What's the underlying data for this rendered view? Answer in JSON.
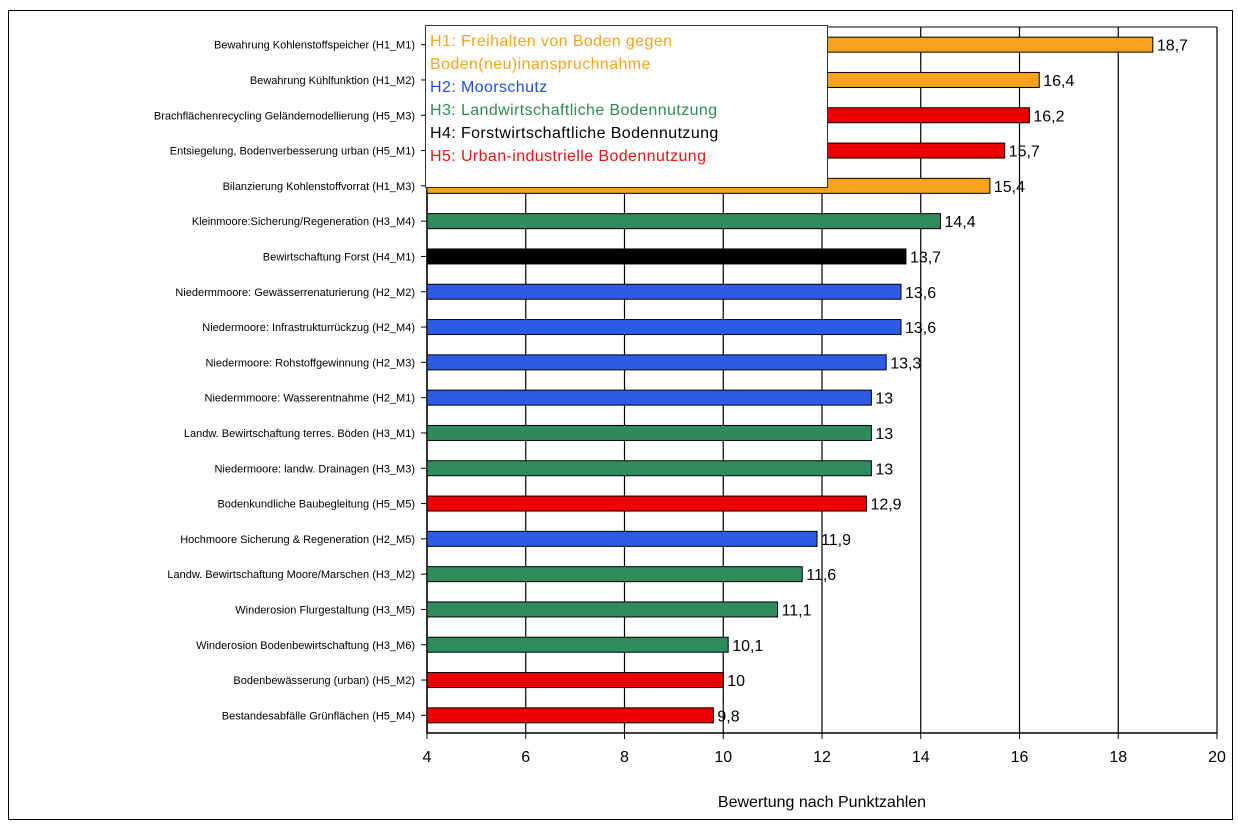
{
  "chart_data": {
    "type": "bar",
    "orientation": "horizontal",
    "xlabel": "Bewertung nach Punktzahlen",
    "ylabel": "",
    "xlim": [
      4,
      20
    ],
    "xticks": [
      4,
      6,
      8,
      10,
      12,
      14,
      16,
      18,
      20
    ],
    "grid": "vertical",
    "legend_position": "top-left",
    "legend": [
      {
        "label": "H1: Freihalten von Boden gegen Boden(neu)inanspruchnahme",
        "color": "#f7a21b"
      },
      {
        "label": "H2: Moorschutz",
        "color": "#2050e0"
      },
      {
        "label": "H3: Landwirtschaftliche Bodennutzung",
        "color": "#2e8b57"
      },
      {
        "label": "H4: Forstwirtschaftliche Bodennutzung",
        "color": "#000000"
      },
      {
        "label": "H5: Urban-industrielle Bodennutzung",
        "color": "#ee1111"
      }
    ],
    "groups": {
      "H1": {
        "color": "#f7a21b"
      },
      "H2": {
        "color": "#2e5be6"
      },
      "H3": {
        "color": "#2e8b5e"
      },
      "H4": {
        "color": "#000000"
      },
      "H5": {
        "color": "#ef0000"
      }
    },
    "categories": [
      "Bewahrung Kohlenstoffspeicher (H1_M1)",
      "Bewahrung Kühlfunktion (H1_M2)",
      "Brachflächenrecycling Geländemodellierung (H5_M3)",
      "Entsiegelung, Bodenverbesserung urban (H5_M1)",
      "Bilanzierung Kohlenstoffvorrat (H1_M3)",
      "Kleinmoore:Sicherung/Regeneration (H3_M4)",
      "Bewirtschaftung Forst (H4_M1)",
      "Niedermmoore: Gewässerrenaturierung (H2_M2)",
      "Niedermoore: Infrastrukturrückzug (H2_M4)",
      "Niedermoore: Rohstoffgewinnung (H2_M3)",
      "Niedermmoore: Wasserentnahme (H2_M1)",
      "Landw. Bewirtschaftung terres. Böden (H3_M1)",
      "Niedermoore: landw. Drainagen (H3_M3)",
      "Bodenkundliche Baubegleitung (H5_M5)",
      "Hochmoore Sicherung & Regeneration (H2_M5)",
      "Landw. Bewirtschaftung Moore/Marschen (H3_M2)",
      "Winderosion Flurgestaltung (H3_M5)",
      "Winderosion Bodenbewirtschaftung (H3_M6)",
      "Bodenbewässerung (urban) (H5_M2)",
      "Bestandesabfälle Grünflächen (H5_M4)"
    ],
    "values": [
      18.7,
      16.4,
      16.2,
      15.7,
      15.4,
      14.4,
      13.7,
      13.6,
      13.6,
      13.3,
      13,
      13,
      13,
      12.9,
      11.9,
      11.6,
      11.1,
      10.1,
      10,
      9.8
    ],
    "value_labels": [
      "18,7",
      "16,4",
      "16,2",
      "15,7",
      "15,4",
      "14,4",
      "13,7",
      "13,6",
      "13,6",
      "13,3",
      "13",
      "13",
      "13",
      "12,9",
      "11,9",
      "11,6",
      "11,1",
      "10,1",
      "10",
      "9,8"
    ],
    "bar_groups": [
      "H1",
      "H1",
      "H5",
      "H5",
      "H1",
      "H3",
      "H4",
      "H2",
      "H2",
      "H2",
      "H2",
      "H3",
      "H3",
      "H5",
      "H2",
      "H3",
      "H3",
      "H3",
      "H5",
      "H5"
    ]
  }
}
